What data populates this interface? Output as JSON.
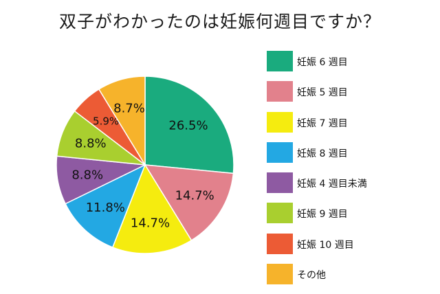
{
  "title": "双子がわかったのは妊娠何週目ですか？",
  "chart_data": {
    "type": "pie",
    "title": "双子がわかったのは妊娠何週目ですか？",
    "slices": [
      {
        "label": "妊娠 6 週目",
        "value": 26.5,
        "value_label": "26.5%",
        "color": "#1aab7e"
      },
      {
        "label": "妊娠 5 週目",
        "value": 14.7,
        "value_label": "14.7%",
        "color": "#e2818c"
      },
      {
        "label": "妊娠 7 週目",
        "value": 14.7,
        "value_label": "14.7%",
        "color": "#f5ec0f"
      },
      {
        "label": "妊娠 8 週目",
        "value": 11.8,
        "value_label": "11.8%",
        "color": "#23a8e3"
      },
      {
        "label": "妊娠 4 週目未満",
        "value": 8.8,
        "value_label": "8.8%",
        "color": "#8e5aa2"
      },
      {
        "label": "妊娠 9 週目",
        "value": 8.8,
        "value_label": "8.8%",
        "color": "#a9cf2f"
      },
      {
        "label": "妊娠 10 週目",
        "value": 5.9,
        "value_label": "5.9%",
        "color": "#ec5b35"
      },
      {
        "label": "その他",
        "value": 8.7,
        "value_label": "8.7%",
        "color": "#f6b32b"
      }
    ],
    "start_angle": "12 o'clock",
    "direction": "clockwise",
    "legend_position": "right"
  }
}
